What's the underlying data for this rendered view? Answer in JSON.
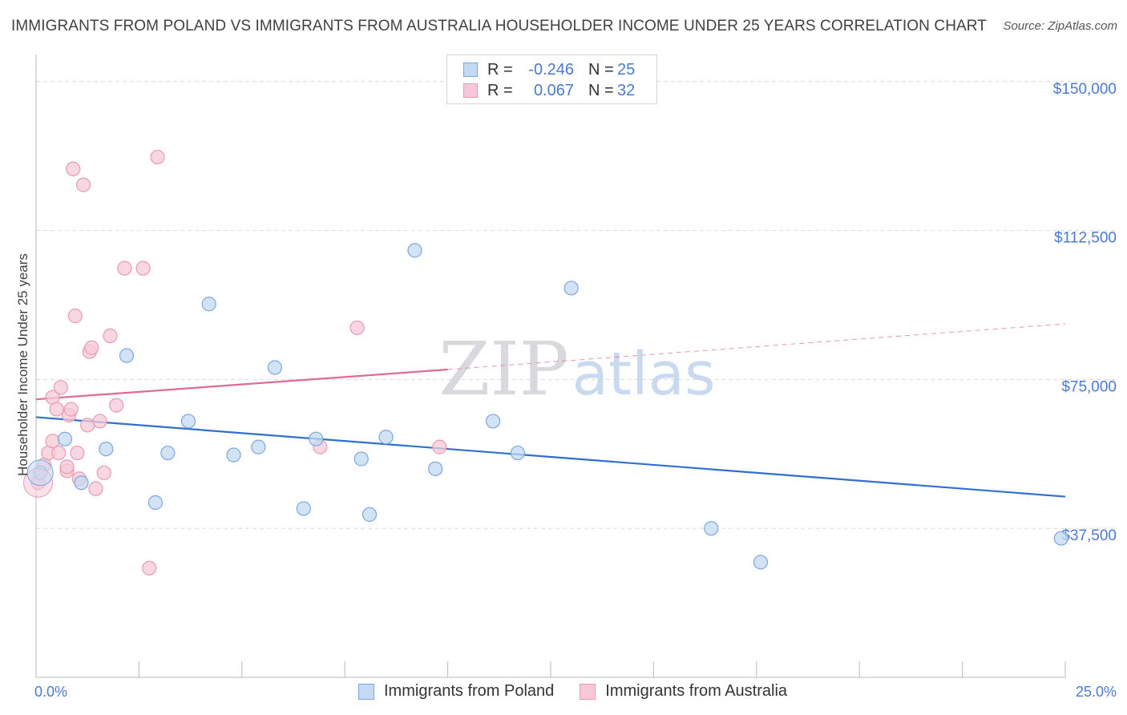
{
  "chart_data": {
    "type": "scatter",
    "title": "IMMIGRANTS FROM POLAND VS IMMIGRANTS FROM AUSTRALIA HOUSEHOLDER INCOME UNDER 25 YEARS CORRELATION CHART",
    "source": "Source: ZipAtlas.com",
    "ylabel": "Householder Income Under 25 years",
    "xlabel": "",
    "xlim": [
      0,
      25
    ],
    "ylim": [
      0,
      155000
    ],
    "x_tick_labels": {
      "min": "0.0%",
      "max": "25.0%"
    },
    "y_ticks": [
      {
        "value": 150000,
        "label": "$150,000"
      },
      {
        "value": 112500,
        "label": "$112,500"
      },
      {
        "value": 75000,
        "label": "$75,000"
      },
      {
        "value": 37500,
        "label": "$37,500"
      }
    ],
    "grid": true,
    "watermark": "ZIPatlas",
    "series": [
      {
        "name": "Immigrants from Poland",
        "color": "#7aa7e0",
        "fill": "#c4d9f3",
        "line_color": "#2f6fce",
        "r_label": "R =",
        "r_value": "-0.246",
        "n_label": "N =",
        "n_value": "25",
        "trend": {
          "x0": 0,
          "y0": 65500,
          "x1": 25,
          "y1": 45500
        },
        "points": [
          [
            0.1,
            51500
          ],
          [
            0.7,
            60000
          ],
          [
            1.1,
            49000
          ],
          [
            1.7,
            57500
          ],
          [
            2.2,
            81000
          ],
          [
            2.9,
            44000
          ],
          [
            3.2,
            56500
          ],
          [
            3.7,
            64500
          ],
          [
            4.2,
            94000
          ],
          [
            4.8,
            56000
          ],
          [
            5.4,
            58000
          ],
          [
            5.8,
            78000
          ],
          [
            6.5,
            42500
          ],
          [
            6.8,
            60000
          ],
          [
            7.9,
            55000
          ],
          [
            8.1,
            41000
          ],
          [
            8.5,
            60500
          ],
          [
            9.2,
            107500
          ],
          [
            9.7,
            52500
          ],
          [
            11.1,
            64500
          ],
          [
            11.7,
            56500
          ],
          [
            13.0,
            98000
          ],
          [
            16.4,
            37500
          ],
          [
            17.6,
            29000
          ],
          [
            24.9,
            35000
          ]
        ]
      },
      {
        "name": "Immigrants from Australia",
        "color": "#e89ab2",
        "fill": "#f7c9d7",
        "line_color": "#de6b93",
        "r_label": "R =",
        "r_value": "0.067",
        "n_label": "N =",
        "n_value": "32",
        "trend": {
          "x0": 0,
          "y0": 70000,
          "x1": 10,
          "y1": 77500,
          "dash_x1": 25,
          "dash_y1": 89000
        },
        "points": [
          [
            0.05,
            49000
          ],
          [
            0.2,
            53500
          ],
          [
            0.3,
            56500
          ],
          [
            0.4,
            70500
          ],
          [
            0.4,
            59500
          ],
          [
            0.5,
            67500
          ],
          [
            0.55,
            56500
          ],
          [
            0.6,
            73000
          ],
          [
            0.75,
            52000
          ],
          [
            0.75,
            53000
          ],
          [
            0.8,
            66000
          ],
          [
            0.85,
            67500
          ],
          [
            0.9,
            128000
          ],
          [
            0.95,
            91000
          ],
          [
            1.0,
            56500
          ],
          [
            1.05,
            50000
          ],
          [
            1.15,
            124000
          ],
          [
            1.25,
            63500
          ],
          [
            1.3,
            82000
          ],
          [
            1.35,
            83000
          ],
          [
            1.45,
            47500
          ],
          [
            1.55,
            64500
          ],
          [
            1.65,
            51500
          ],
          [
            1.8,
            86000
          ],
          [
            1.95,
            68500
          ],
          [
            2.15,
            103000
          ],
          [
            2.6,
            103000
          ],
          [
            2.75,
            27500
          ],
          [
            2.95,
            131000
          ],
          [
            6.9,
            58000
          ],
          [
            7.8,
            88000
          ],
          [
            9.8,
            58000
          ]
        ]
      }
    ]
  }
}
